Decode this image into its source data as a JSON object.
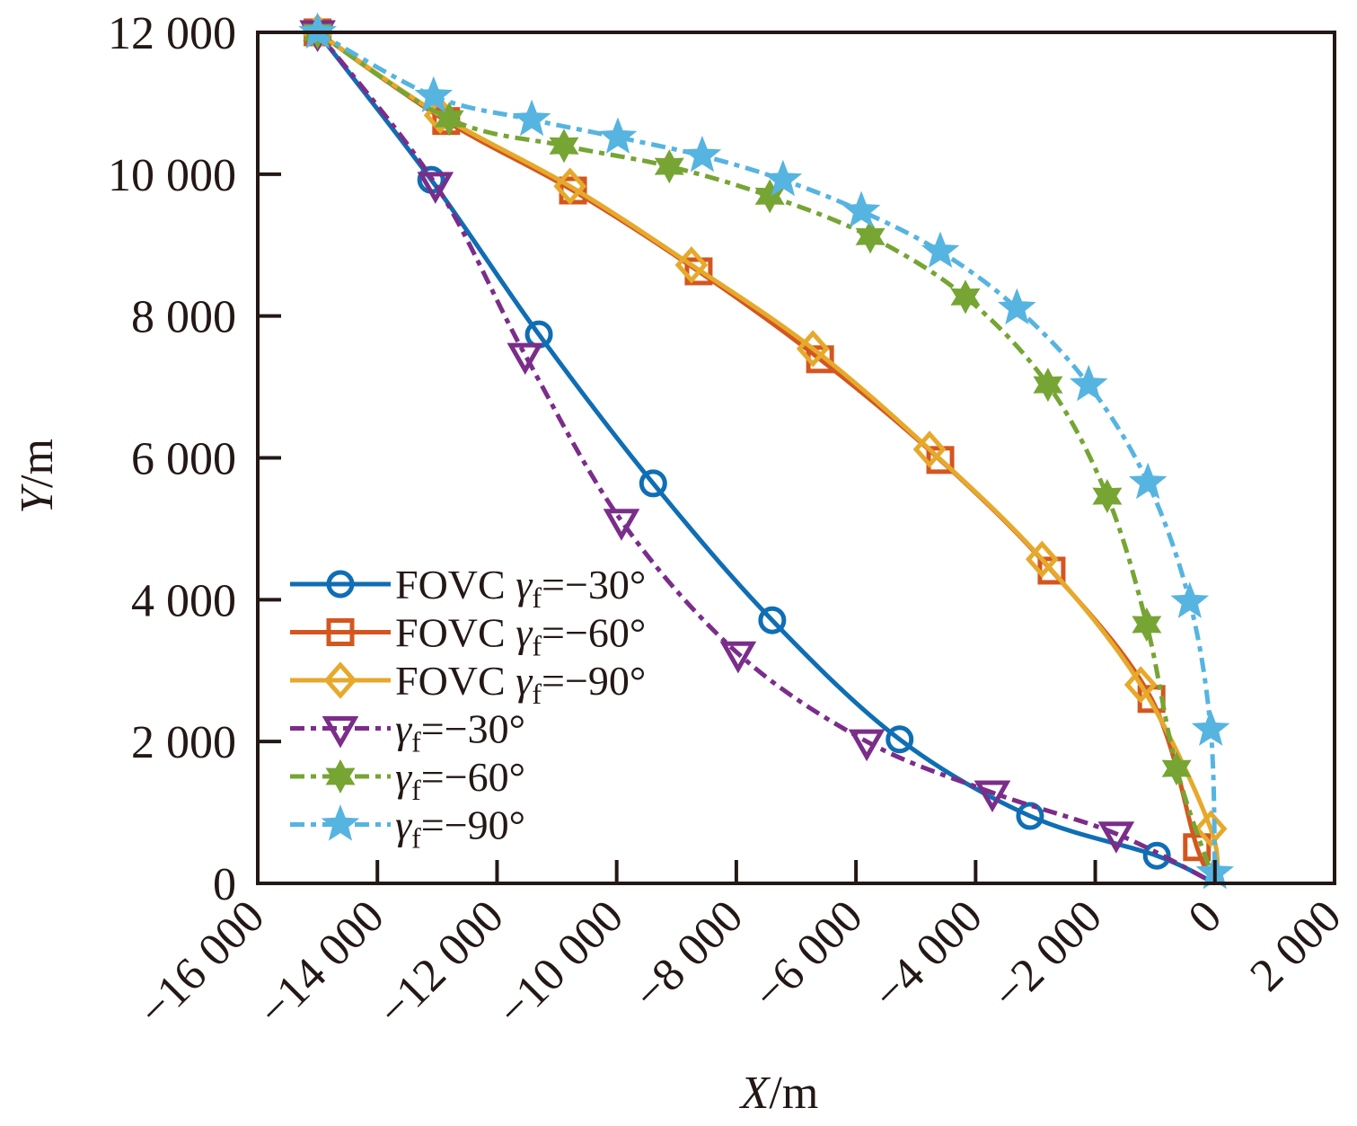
{
  "chart_data": {
    "type": "line",
    "title": "",
    "xlabel": "X/m",
    "ylabel": "Y/m",
    "xlabel_italic_part": "X",
    "ylabel_italic_part": "Y",
    "label_unit": "/m",
    "xlim": [
      -16000,
      2000
    ],
    "ylim": [
      0,
      12000
    ],
    "xticks": [
      -16000,
      -14000,
      -12000,
      -10000,
      -8000,
      -6000,
      -4000,
      -2000,
      0,
      2000
    ],
    "xtick_labels": [
      "−16 000",
      "−14 000",
      "−12 000",
      "−10 000",
      "−8 000",
      "−6 000",
      "−4 000",
      "−2 000",
      "0",
      "2 000"
    ],
    "yticks": [
      0,
      2000,
      4000,
      6000,
      8000,
      10000,
      12000
    ],
    "ytick_labels": [
      "0",
      "2 000",
      "4 000",
      "6 000",
      "8 000",
      "10 000",
      "12 000"
    ],
    "grid": false,
    "legend_position": "lower-left",
    "series": [
      {
        "name": "FOVC γf=−30°",
        "legend_prefix": "FOVC ",
        "legend_suffix": "=−30°",
        "color": "#0f6eb4",
        "line_style": "solid",
        "marker": "circle",
        "x": [
          -15000,
          -13100,
          -11300,
          -9390,
          -7400,
          -5270,
          -3090,
          -970,
          0
        ],
        "y": [
          12000,
          9920,
          7740,
          5640,
          3710,
          2030,
          950,
          390,
          0
        ]
      },
      {
        "name": "FOVC γf=−60°",
        "legend_prefix": "FOVC ",
        "legend_suffix": "=−60°",
        "color": "#d4561f",
        "line_style": "solid",
        "marker": "square",
        "x": [
          -15000,
          -12850,
          -10730,
          -8630,
          -6600,
          -4590,
          -2730,
          -1060,
          -300,
          0
        ],
        "y": [
          12000,
          10750,
          9770,
          8630,
          7390,
          5970,
          4410,
          2600,
          510,
          0
        ]
      },
      {
        "name": "FOVC γf=−90°",
        "legend_prefix": "FOVC ",
        "legend_suffix": "=−90°",
        "color": "#e6a92b",
        "line_style": "solid",
        "marker": "diamond",
        "x": [
          -15000,
          -12950,
          -10780,
          -8750,
          -6720,
          -4770,
          -2890,
          -1240,
          -70,
          0
        ],
        "y": [
          12000,
          10830,
          9830,
          8720,
          7540,
          6120,
          4570,
          2800,
          770,
          0
        ]
      },
      {
        "name": "γf=−30°",
        "legend_prefix": "",
        "legend_suffix": "=−30°",
        "color": "#7b2d8a",
        "line_style": "dashdot",
        "marker": "triangle-down",
        "x": [
          -15000,
          -13030,
          -11530,
          -9920,
          -7970,
          -5820,
          -3720,
          -1650,
          0
        ],
        "y": [
          12000,
          9860,
          7450,
          5110,
          3240,
          2000,
          1280,
          700,
          0
        ]
      },
      {
        "name": "γf=−60°",
        "legend_prefix": "",
        "legend_suffix": "=−60°",
        "color": "#76a534",
        "line_style": "dashdot",
        "marker": "hexagram",
        "x": [
          -15000,
          -12800,
          -10880,
          -9120,
          -7440,
          -5760,
          -4170,
          -2790,
          -1800,
          -1140,
          -640,
          0
        ],
        "y": [
          12000,
          10780,
          10400,
          10110,
          9690,
          9120,
          8270,
          7030,
          5460,
          3650,
          1620,
          0
        ]
      },
      {
        "name": "γf=−90°",
        "legend_prefix": "",
        "legend_suffix": "=−90°",
        "color": "#56b4e0",
        "line_style": "dashdot",
        "marker": "star",
        "x": [
          -15000,
          -13060,
          -11420,
          -9980,
          -8570,
          -7220,
          -5910,
          -4590,
          -3310,
          -2110,
          -1120,
          -420,
          -70,
          0
        ],
        "y": [
          12000,
          11100,
          10770,
          10520,
          10260,
          9920,
          9480,
          8910,
          8110,
          7030,
          5650,
          3970,
          2170,
          150
        ]
      }
    ]
  }
}
